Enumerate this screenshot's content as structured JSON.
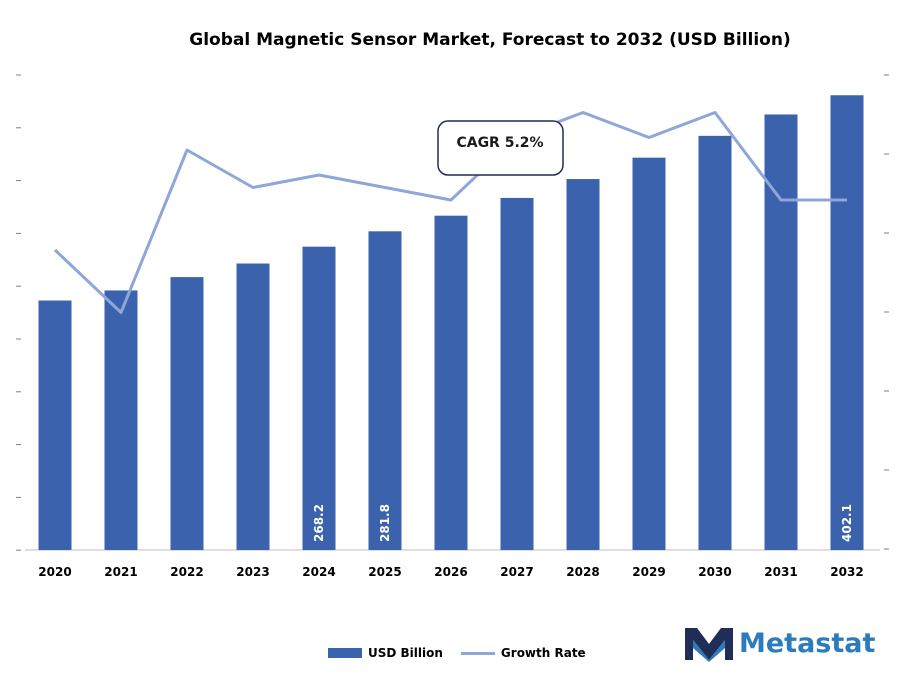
{
  "colors": {
    "bar": "#3b62ad",
    "line": "#8fa6d9",
    "tick": "#7f7f7f",
    "logo_blue": "#2b7bbd",
    "logo_dark": "#1f2d57"
  },
  "chart_data": {
    "type": "bar",
    "title": "Global Magnetic Sensor Market, Forecast to 2032 (USD Billion)",
    "categories": [
      "2020",
      "2021",
      "2022",
      "2023",
      "2024",
      "2025",
      "2026",
      "2027",
      "2028",
      "2029",
      "2030",
      "2031",
      "2032"
    ],
    "series": [
      {
        "name": "USD Billion",
        "kind": "bar",
        "values": [
          220.6,
          229.5,
          241.3,
          253.3,
          268.2,
          281.8,
          295.6,
          311.3,
          328.0,
          346.9,
          366.2,
          385.1,
          402.1
        ]
      },
      {
        "name": "Growth Rate",
        "kind": "line",
        "values": [
          4.4,
          3.9,
          5.2,
          4.9,
          5.0,
          4.9,
          4.8,
          5.3,
          5.5,
          5.3,
          5.5,
          4.8,
          4.8
        ]
      }
    ],
    "data_labels": {
      "2024": "268.2",
      "2025": "281.8",
      "2032": "402.1"
    },
    "ylim_left": [
      0,
      420
    ],
    "ylim_right": [
      2,
      5.8
    ],
    "annotation": "CAGR 5.2%"
  },
  "legend": {
    "bar_label": "USD Billion",
    "line_label": "Growth Rate"
  },
  "brand": {
    "name": "Metastat"
  }
}
